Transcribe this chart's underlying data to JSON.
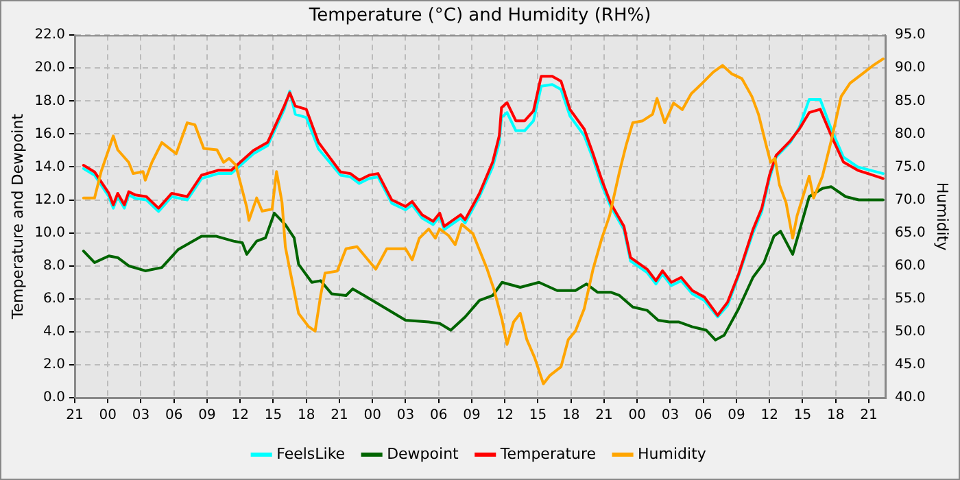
{
  "chart_data": {
    "type": "line",
    "title": "Temperature (°C) and Humidity (RH%)",
    "ylabel": "Temperature and Dewpoint",
    "y2label": "Humidity",
    "xlim": [
      "--01-01T21:00",
      "--01-04T22:30"
    ],
    "xticks": [
      {
        "value": "--01-01T21:00",
        "label": "21"
      },
      {
        "value": "--01-02T00:00",
        "label": "00"
      },
      {
        "value": "--01-02T03:00",
        "label": "03"
      },
      {
        "value": "--01-02T06:00",
        "label": "06"
      },
      {
        "value": "--01-02T09:00",
        "label": "09"
      },
      {
        "value": "--01-02T12:00",
        "label": "12"
      },
      {
        "value": "--01-02T15:00",
        "label": "15"
      },
      {
        "value": "--01-02T18:00",
        "label": "18"
      },
      {
        "value": "--01-02T21:00",
        "label": "21"
      },
      {
        "value": "--01-03T00:00",
        "label": "00"
      },
      {
        "value": "--01-03T03:00",
        "label": "03"
      },
      {
        "value": "--01-03T06:00",
        "label": "06"
      },
      {
        "value": "--01-03T09:00",
        "label": "09"
      },
      {
        "value": "--01-03T12:00",
        "label": "12"
      },
      {
        "value": "--01-03T15:00",
        "label": "15"
      },
      {
        "value": "--01-03T18:00",
        "label": "18"
      },
      {
        "value": "--01-03T21:00",
        "label": "21"
      },
      {
        "value": "--01-04T00:00",
        "label": "00"
      },
      {
        "value": "--01-04T03:00",
        "label": "03"
      },
      {
        "value": "--01-04T06:00",
        "label": "06"
      },
      {
        "value": "--01-04T09:00",
        "label": "09"
      },
      {
        "value": "--01-04T12:00",
        "label": "12"
      },
      {
        "value": "--01-04T15:00",
        "label": "15"
      },
      {
        "value": "--01-04T18:00",
        "label": "18"
      },
      {
        "value": "--01-04T21:00",
        "label": "21"
      }
    ],
    "ylim": [
      0,
      22
    ],
    "yticks": [
      {
        "value": 0,
        "label": "0.0"
      },
      {
        "value": 2,
        "label": "2.0"
      },
      {
        "value": 4,
        "label": "4.0"
      },
      {
        "value": 6,
        "label": "6.0"
      },
      {
        "value": 8,
        "label": "8.0"
      },
      {
        "value": 10,
        "label": "10.0"
      },
      {
        "value": 12,
        "label": "12.0"
      },
      {
        "value": 14,
        "label": "14.0"
      },
      {
        "value": 16,
        "label": "16.0"
      },
      {
        "value": 18,
        "label": "18.0"
      },
      {
        "value": 20,
        "label": "20.0"
      },
      {
        "value": 22,
        "label": "22.0"
      }
    ],
    "y2lim": [
      40,
      95
    ],
    "y2ticks": [
      {
        "value": 40,
        "label": "40.0"
      },
      {
        "value": 45,
        "label": "45.0"
      },
      {
        "value": 50,
        "label": "50.0"
      },
      {
        "value": 55,
        "label": "55.0"
      },
      {
        "value": 60,
        "label": "60.0"
      },
      {
        "value": 65,
        "label": "65.0"
      },
      {
        "value": 70,
        "label": "70.0"
      },
      {
        "value": 75,
        "label": "75.0"
      },
      {
        "value": 80,
        "label": "80.0"
      },
      {
        "value": 85,
        "label": "85.0"
      },
      {
        "value": 90,
        "label": "90.0"
      },
      {
        "value": 95,
        "label": "95.0"
      }
    ],
    "grid": true,
    "legend": "bottom",
    "marker": "none",
    "line_style": "solid",
    "series": [
      {
        "name": "FeelsLike",
        "color": "#00ffff",
        "x": [
          "--01-01T21:48",
          "--01-01T22:48",
          "--01-02T00:06",
          "--01-02T00:30",
          "--01-02T00:54",
          "--01-02T01:30",
          "--01-02T01:54",
          "--01-02T02:30",
          "--01-02T03:30",
          "--01-02T04:36",
          "--01-02T05:48",
          "--01-02T07:12",
          "--01-02T08:30",
          "--01-02T10:00",
          "--01-02T11:12",
          "--01-02T13:12",
          "--01-02T14:30",
          "--01-02T16:00",
          "--01-02T16:30",
          "--01-02T17:00",
          "--01-02T18:00",
          "--01-02T19:06",
          "--01-02T20:06",
          "--01-02T21:06",
          "--01-02T22:00",
          "--01-02T22:48",
          "--01-02T23:42",
          "--01-03T00:30",
          "--01-03T01:45",
          "--01-03T03:00",
          "--01-03T03:36",
          "--01-03T04:30",
          "--01-03T05:30",
          "--01-03T06:06",
          "--01-03T06:30",
          "--01-03T08:00",
          "--01-03T08:24",
          "--01-03T09:42",
          "--01-03T10:54",
          "--01-03T11:30",
          "--01-03T11:42",
          "--01-03T12:12",
          "--01-03T13:00",
          "--01-03T13:48",
          "--01-03T14:36",
          "--01-03T15:18",
          "--01-03T16:18",
          "--01-03T17:06",
          "--01-03T17:54",
          "--01-03T19:12",
          "--01-03T20:00",
          "--01-03T20:48",
          "--01-03T21:36",
          "--01-03T22:48",
          "--01-03T23:24",
          "--01-04T00:54",
          "--01-04T01:42",
          "--01-04T02:18",
          "--01-04T03:06",
          "--01-04T04:00",
          "--01-04T05:00",
          "--01-04T06:06",
          "--01-04T07:18",
          "--01-04T08:12",
          "--01-04T09:12",
          "--01-04T10:30",
          "--01-04T11:18",
          "--01-04T12:00",
          "--01-04T12:36",
          "--01-04T13:54",
          "--01-04T14:42",
          "--01-04T15:36",
          "--01-04T16:36",
          "--01-04T17:36",
          "--01-04T18:42",
          "--01-04T20:00",
          "--01-04T22:18"
        ],
        "values": [
          13.9,
          13.5,
          12.2,
          11.5,
          12.2,
          11.5,
          12.3,
          12.1,
          12.0,
          11.3,
          12.2,
          12.0,
          13.3,
          13.6,
          13.6,
          14.8,
          15.3,
          17.5,
          18.6,
          17.2,
          17.0,
          15.1,
          14.3,
          13.5,
          13.4,
          13.0,
          13.3,
          13.4,
          11.8,
          11.4,
          11.7,
          10.9,
          10.5,
          11.0,
          10.2,
          10.9,
          10.6,
          12.2,
          14.0,
          15.5,
          17.0,
          17.3,
          16.2,
          16.2,
          16.8,
          18.9,
          19.0,
          18.7,
          17.1,
          15.9,
          14.5,
          12.9,
          11.6,
          10.2,
          8.3,
          7.6,
          6.9,
          7.5,
          6.8,
          7.1,
          6.3,
          5.9,
          4.9,
          5.6,
          7.4,
          10.0,
          11.3,
          13.3,
          14.6,
          15.5,
          16.4,
          18.1,
          18.1,
          16.3,
          14.6,
          14.0,
          13.6
        ]
      },
      {
        "name": "Dewpoint",
        "color": "#006400",
        "x": [
          "--01-01T21:48",
          "--01-01T22:48",
          "--01-02T00:06",
          "--01-02T00:54",
          "--01-02T01:54",
          "--01-02T03:24",
          "--01-02T04:54",
          "--01-02T06:24",
          "--01-02T08:30",
          "--01-02T09:48",
          "--01-02T11:24",
          "--01-02T12:12",
          "--01-02T12:36",
          "--01-02T13:30",
          "--01-02T14:18",
          "--01-02T15:06",
          "--01-02T16:06",
          "--01-02T16:54",
          "--01-02T17:18",
          "--01-02T18:30",
          "--01-02T19:18",
          "--01-02T20:18",
          "--01-02T21:36",
          "--01-02T22:12",
          "--01-02T23:15",
          "--01-03T01:00",
          "--01-03T03:00",
          "--01-03T05:06",
          "--01-03T06:06",
          "--01-03T07:06",
          "--01-03T08:24",
          "--01-03T09:42",
          "--01-03T10:54",
          "--01-03T11:45",
          "--01-03T13:24",
          "--01-03T15:06",
          "--01-03T16:45",
          "--01-03T18:24",
          "--01-03T19:24",
          "--01-03T20:24",
          "--01-03T21:36",
          "--01-03T22:24",
          "--01-03T23:36",
          "--01-04T00:54",
          "--01-04T01:54",
          "--01-04T02:54",
          "--01-04T03:45",
          "--01-04T05:00",
          "--01-04T06:15",
          "--01-04T07:06",
          "--01-04T07:54",
          "--01-04T09:12",
          "--01-04T10:30",
          "--01-04T11:30",
          "--01-04T12:24",
          "--01-04T13:00",
          "--01-04T14:06",
          "--01-04T14:45",
          "--01-04T15:36",
          "--01-04T16:48",
          "--01-04T17:36",
          "--01-04T18:54",
          "--01-04T20:06",
          "--01-04T22:18"
        ],
        "values": [
          8.9,
          8.2,
          8.6,
          8.5,
          8.0,
          7.7,
          7.9,
          9.0,
          9.8,
          9.8,
          9.5,
          9.4,
          8.7,
          9.5,
          9.7,
          11.2,
          10.5,
          9.7,
          8.1,
          7.0,
          7.1,
          6.3,
          6.2,
          6.6,
          6.2,
          5.5,
          4.7,
          4.6,
          4.5,
          4.1,
          4.9,
          5.9,
          6.2,
          7.0,
          6.7,
          7.0,
          6.5,
          6.5,
          6.9,
          6.4,
          6.4,
          6.2,
          5.5,
          5.3,
          4.7,
          4.6,
          4.6,
          4.3,
          4.1,
          3.5,
          3.8,
          5.4,
          7.3,
          8.2,
          9.8,
          10.1,
          8.7,
          10.2,
          12.2,
          12.7,
          12.8,
          12.2,
          12.0,
          12.0
        ]
      },
      {
        "name": "Temperature",
        "color": "#ff0000",
        "x": [
          "--01-01T21:48",
          "--01-01T22:48",
          "--01-02T00:06",
          "--01-02T00:30",
          "--01-02T00:54",
          "--01-02T01:30",
          "--01-02T01:54",
          "--01-02T02:30",
          "--01-02T03:30",
          "--01-02T04:36",
          "--01-02T05:48",
          "--01-02T07:12",
          "--01-02T08:30",
          "--01-02T10:00",
          "--01-02T11:12",
          "--01-02T13:12",
          "--01-02T14:30",
          "--01-02T16:00",
          "--01-02T16:30",
          "--01-02T17:00",
          "--01-02T18:00",
          "--01-02T19:06",
          "--01-02T20:06",
          "--01-02T21:06",
          "--01-02T22:00",
          "--01-02T22:48",
          "--01-02T23:42",
          "--01-03T00:30",
          "--01-03T01:45",
          "--01-03T03:00",
          "--01-03T03:36",
          "--01-03T04:30",
          "--01-03T05:30",
          "--01-03T06:06",
          "--01-03T06:30",
          "--01-03T08:00",
          "--01-03T08:24",
          "--01-03T09:42",
          "--01-03T10:54",
          "--01-03T11:30",
          "--01-03T11:42",
          "--01-03T12:12",
          "--01-03T13:00",
          "--01-03T13:48",
          "--01-03T14:36",
          "--01-03T15:18",
          "--01-03T16:18",
          "--01-03T17:06",
          "--01-03T17:54",
          "--01-03T19:12",
          "--01-03T20:00",
          "--01-03T20:48",
          "--01-03T21:36",
          "--01-03T22:48",
          "--01-03T23:24",
          "--01-04T00:54",
          "--01-04T01:42",
          "--01-04T02:18",
          "--01-04T03:06",
          "--01-04T04:00",
          "--01-04T05:00",
          "--01-04T06:06",
          "--01-04T07:18",
          "--01-04T08:12",
          "--01-04T09:12",
          "--01-04T10:30",
          "--01-04T11:18",
          "--01-04T12:00",
          "--01-04T12:36",
          "--01-04T13:54",
          "--01-04T14:42",
          "--01-04T15:36",
          "--01-04T16:36",
          "--01-04T17:36",
          "--01-04T18:42",
          "--01-04T20:00",
          "--01-04T22:18"
        ],
        "values": [
          14.1,
          13.7,
          12.4,
          11.7,
          12.4,
          11.7,
          12.5,
          12.3,
          12.2,
          11.5,
          12.4,
          12.2,
          13.5,
          13.8,
          13.8,
          15.0,
          15.5,
          17.7,
          18.5,
          17.7,
          17.5,
          15.5,
          14.6,
          13.7,
          13.6,
          13.2,
          13.5,
          13.6,
          12.0,
          11.6,
          11.9,
          11.1,
          10.7,
          11.2,
          10.4,
          11.1,
          10.8,
          12.4,
          14.3,
          15.9,
          17.6,
          17.9,
          16.8,
          16.8,
          17.4,
          19.5,
          19.5,
          19.2,
          17.5,
          16.3,
          14.8,
          13.2,
          11.8,
          10.4,
          8.5,
          7.8,
          7.1,
          7.7,
          7.0,
          7.3,
          6.5,
          6.1,
          5.0,
          5.8,
          7.5,
          10.2,
          11.5,
          13.5,
          14.7,
          15.6,
          16.3,
          17.3,
          17.5,
          15.9,
          14.3,
          13.8,
          13.3
        ]
      },
      {
        "name": "Humidity",
        "color": "#ffa500",
        "axis": "y2",
        "x": [
          "--01-01T21:48",
          "--01-01T22:48",
          "--01-01T23:24",
          "--01-02T00:30",
          "--01-02T00:54",
          "--01-02T01:54",
          "--01-02T02:18",
          "--01-02T03:12",
          "--01-02T03:24",
          "--01-02T04:00",
          "--01-02T04:54",
          "--01-02T06:12",
          "--01-02T07:12",
          "--01-02T07:54",
          "--01-02T08:42",
          "--01-02T09:54",
          "--01-02T10:30",
          "--01-02T11:00",
          "--01-02T11:36",
          "--01-02T12:36",
          "--01-02T12:48",
          "--01-02T13:30",
          "--01-02T14:00",
          "--01-02T14:54",
          "--01-02T15:18",
          "--01-02T15:48",
          "--01-02T16:06",
          "--01-02T16:30",
          "--01-02T17:18",
          "--01-02T18:12",
          "--01-02T18:48",
          "--01-02T19:18",
          "--01-02T19:42",
          "--01-02T20:48",
          "--01-02T21:36",
          "--01-02T22:36",
          "--01-02T23:15",
          "--01-03T00:18",
          "--01-03T01:18",
          "--01-03T03:00",
          "--01-03T03:36",
          "--01-03T04:15",
          "--01-03T05:06",
          "--01-03T05:42",
          "--01-03T06:06",
          "--01-03T06:54",
          "--01-03T07:30",
          "--01-03T08:06",
          "--01-03T09:06",
          "--01-03T09:45",
          "--01-03T10:24",
          "--01-03T11:00",
          "--01-03T11:45",
          "--01-03T12:12",
          "--01-03T12:48",
          "--01-03T13:24",
          "--01-03T14:00",
          "--01-03T14:42",
          "--01-03T15:30",
          "--01-03T16:06",
          "--01-03T17:06",
          "--01-03T17:45",
          "--01-03T18:24",
          "--01-03T19:12",
          "--01-03T20:00",
          "--01-03T20:48",
          "--01-03T21:30",
          "--01-03T22:24",
          "--01-03T23:00",
          "--01-03T23:36",
          "--01-04T00:30",
          "--01-04T01:24",
          "--01-04T01:48",
          "--01-04T02:30",
          "--01-04T03:18",
          "--01-04T04:06",
          "--01-04T04:54",
          "--01-04T05:54",
          "--01-04T06:54",
          "--01-04T07:45",
          "--01-04T08:36",
          "--01-04T09:30",
          "--01-04T10:24",
          "--01-04T11:00",
          "--01-04T11:42",
          "--01-04T12:06",
          "--01-04T12:30",
          "--01-04T12:54",
          "--01-04T13:30",
          "--01-04T14:06",
          "--01-04T14:30",
          "--01-04T15:36",
          "--01-04T16:00",
          "--01-04T16:48",
          "--01-04T17:36",
          "--01-04T18:30",
          "--01-04T19:18",
          "--01-04T20:24",
          "--01-04T21:24",
          "--01-04T22:18"
        ],
        "values": [
          70.3,
          70.3,
          74.3,
          79.7,
          77.6,
          75.7,
          74.0,
          74.3,
          73.0,
          75.7,
          78.7,
          77.0,
          81.7,
          81.4,
          77.8,
          77.6,
          75.7,
          76.3,
          75.3,
          68.9,
          66.9,
          70.3,
          68.3,
          68.6,
          74.3,
          69.6,
          62.9,
          59.5,
          52.8,
          50.8,
          50.1,
          55.5,
          58.9,
          59.2,
          62.6,
          62.9,
          61.6,
          59.5,
          62.6,
          62.6,
          60.9,
          64.2,
          65.6,
          64.2,
          65.6,
          64.6,
          63.2,
          66.3,
          64.9,
          62.2,
          59.5,
          56.5,
          51.8,
          48.1,
          51.5,
          52.8,
          48.8,
          46.1,
          42.1,
          43.4,
          44.7,
          48.8,
          50.1,
          53.5,
          59.5,
          64.2,
          67.6,
          74.3,
          78.3,
          81.7,
          82.0,
          83.0,
          85.4,
          81.7,
          84.7,
          83.7,
          86.1,
          87.7,
          89.4,
          90.4,
          89.1,
          88.4,
          85.7,
          83.0,
          78.3,
          75.7,
          76.3,
          72.3,
          69.6,
          64.2,
          67.6,
          73.6,
          70.3,
          73.6,
          79.0,
          85.7,
          87.7,
          89.1,
          90.4,
          91.4
        ]
      }
    ]
  }
}
